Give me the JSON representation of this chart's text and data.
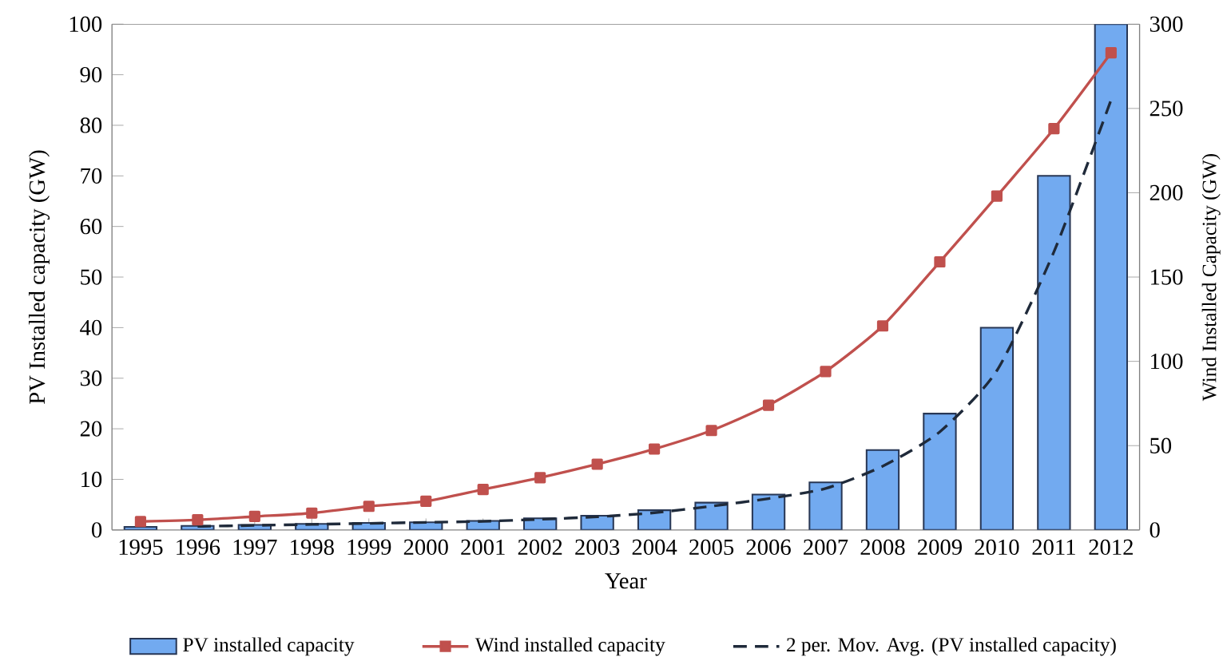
{
  "chart_data": {
    "type": "bar",
    "xlabel": "Year",
    "ylabel": "PV Installed capacity (GW)",
    "y2label": "Wind Installed Capacity (GW)",
    "categories": [
      "1995",
      "1996",
      "1997",
      "1998",
      "1999",
      "2000",
      "2001",
      "2002",
      "2003",
      "2004",
      "2005",
      "2006",
      "2007",
      "2008",
      "2009",
      "2010",
      "2011",
      "2012"
    ],
    "series": [
      {
        "name": "PV installed capacity",
        "color": "#72aaf0",
        "values": [
          0.6,
          0.8,
          1.0,
          1.2,
          1.4,
          1.5,
          1.8,
          2.3,
          2.8,
          3.9,
          5.4,
          7.0,
          9.4,
          15.8,
          23,
          40,
          70,
          100
        ]
      },
      {
        "name": "Wind installed capacity",
        "type": "line",
        "axis": "y2",
        "color": "#c0504d",
        "marker": "square",
        "values": [
          5,
          6,
          8,
          10,
          14,
          17,
          24,
          31,
          39,
          48,
          59,
          74,
          94,
          121,
          159,
          198,
          238,
          283
        ]
      },
      {
        "name": "2 per. Mov. Avg. (PV installed capacity)",
        "type": "line",
        "color": "#1f2a3a",
        "line_style": "dashed",
        "values": [
          null,
          0.7,
          0.9,
          1.1,
          1.3,
          1.5,
          1.7,
          2.1,
          2.6,
          3.4,
          4.7,
          6.2,
          8.2,
          12.6,
          19.4,
          31.5,
          55,
          85
        ]
      }
    ],
    "ylim": [
      0,
      100
    ],
    "yticks": [
      0,
      10,
      20,
      30,
      40,
      50,
      60,
      70,
      80,
      90,
      100
    ],
    "y2lim": [
      0,
      300
    ],
    "y2ticks": [
      0,
      50,
      100,
      150,
      200,
      250,
      300
    ],
    "grid": false,
    "legend": "bottom"
  }
}
